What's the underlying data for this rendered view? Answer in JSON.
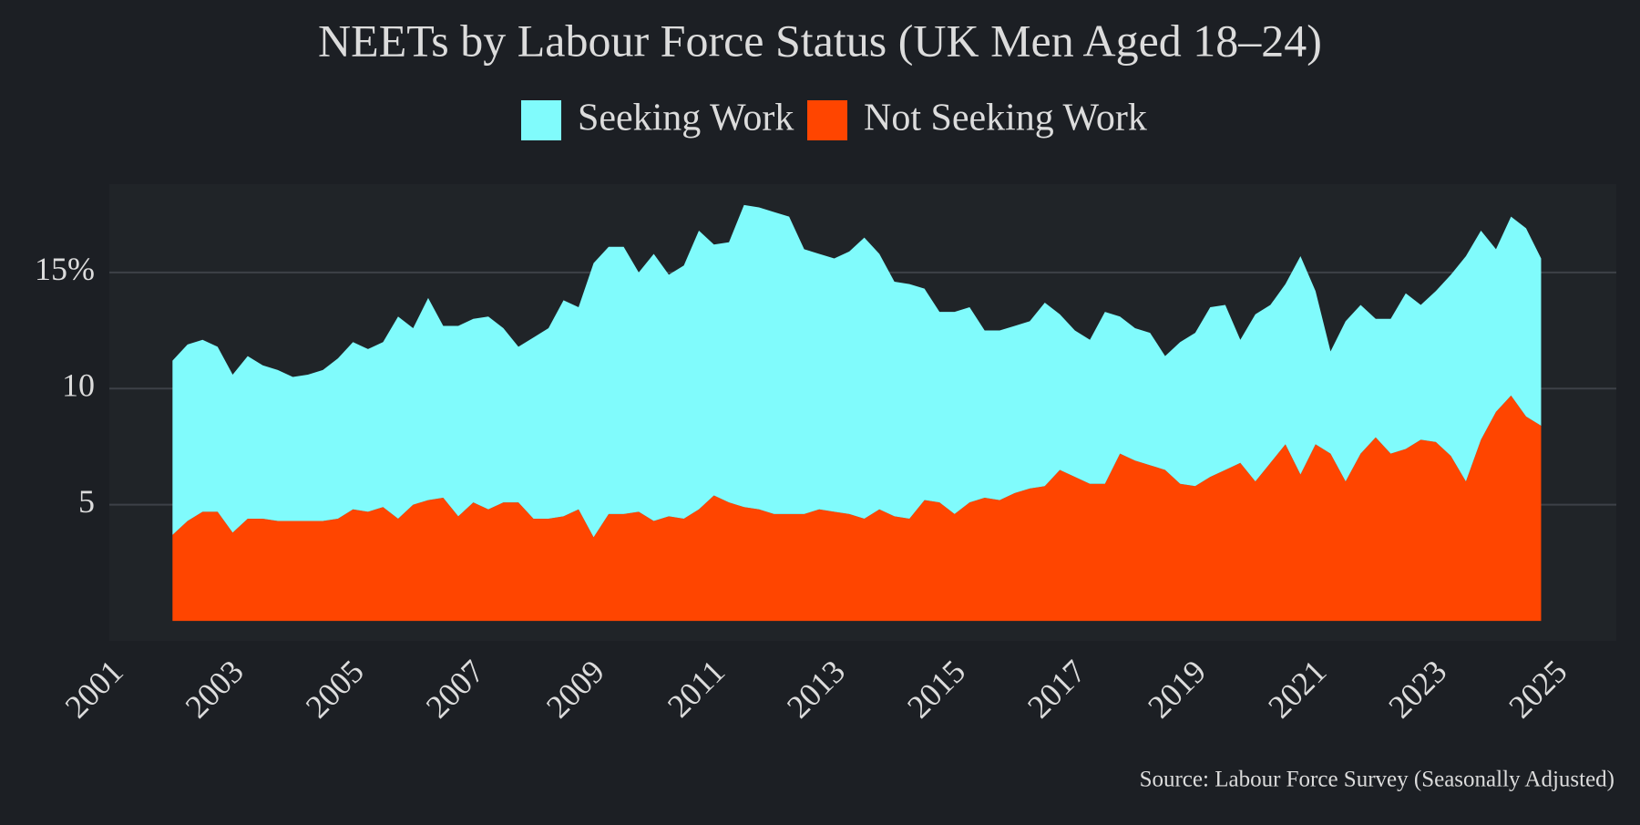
{
  "chart_data": {
    "type": "stacked-area",
    "title": "NEETs by Labour Force Status (UK Men Aged 18–24)",
    "source": "Source: Labour Force Survey (Seasonally Adjusted)",
    "x": [
      2002,
      2002.25,
      2002.5,
      2002.75,
      2003,
      2003.25,
      2003.5,
      2003.75,
      2004,
      2004.25,
      2004.5,
      2004.75,
      2005,
      2005.25,
      2005.5,
      2005.75,
      2006,
      2006.25,
      2006.5,
      2006.75,
      2007,
      2007.25,
      2007.5,
      2007.75,
      2008,
      2008.25,
      2008.5,
      2008.75,
      2009,
      2009.25,
      2009.5,
      2009.75,
      2010,
      2010.25,
      2010.5,
      2010.75,
      2011,
      2011.25,
      2011.5,
      2011.75,
      2012,
      2012.25,
      2012.5,
      2012.75,
      2013,
      2013.25,
      2013.5,
      2013.75,
      2014,
      2014.25,
      2014.5,
      2014.75,
      2015,
      2015.25,
      2015.5,
      2015.75,
      2016,
      2016.25,
      2016.5,
      2016.75,
      2017,
      2017.25,
      2017.5,
      2017.75,
      2018,
      2018.25,
      2018.5,
      2018.75,
      2019,
      2019.25,
      2019.5,
      2019.75,
      2020,
      2020.25,
      2020.5,
      2020.75,
      2021,
      2021.25,
      2021.5,
      2021.75,
      2022,
      2022.25,
      2022.5,
      2022.75,
      2023,
      2023.25,
      2023.5,
      2023.75,
      2024,
      2024.25,
      2024.5,
      2024.75
    ],
    "series": [
      {
        "name": "Seeking Work",
        "color": "#80fbfc",
        "values": [
          7.5,
          7.6,
          7.4,
          7.1,
          6.8,
          7.0,
          6.6,
          6.5,
          6.2,
          6.3,
          6.5,
          6.9,
          7.2,
          7.0,
          7.1,
          8.7,
          7.6,
          8.7,
          7.4,
          8.2,
          7.9,
          8.3,
          7.5,
          6.7,
          7.8,
          8.2,
          9.3,
          8.7,
          11.8,
          11.5,
          11.5,
          10.3,
          11.5,
          10.4,
          10.9,
          12.0,
          10.8,
          11.2,
          13.0,
          13.0,
          13.0,
          12.8,
          11.4,
          11.0,
          10.9,
          11.3,
          12.1,
          11.0,
          10.1,
          10.1,
          9.1,
          8.2,
          8.7,
          8.4,
          7.2,
          7.3,
          7.2,
          7.2,
          7.9,
          6.7,
          6.3,
          6.2,
          7.4,
          5.9,
          5.7,
          5.7,
          4.9,
          6.1,
          6.6,
          7.3,
          7.1,
          5.3,
          7.2,
          6.8,
          6.9,
          9.4,
          6.6,
          4.4,
          6.9,
          6.4,
          5.1,
          5.8,
          6.7,
          5.8,
          6.5,
          7.8,
          9.7,
          9.0,
          7.0,
          7.7,
          8.1,
          7.2
        ]
      },
      {
        "name": "Not Seeking Work",
        "color": "#ff4500",
        "values": [
          3.7,
          4.3,
          4.7,
          4.7,
          3.8,
          4.4,
          4.4,
          4.3,
          4.3,
          4.3,
          4.3,
          4.4,
          4.8,
          4.7,
          4.9,
          4.4,
          5.0,
          5.2,
          5.3,
          4.5,
          5.1,
          4.8,
          5.1,
          5.1,
          4.4,
          4.4,
          4.5,
          4.8,
          3.6,
          4.6,
          4.6,
          4.7,
          4.3,
          4.5,
          4.4,
          4.8,
          5.4,
          5.1,
          4.9,
          4.8,
          4.6,
          4.6,
          4.6,
          4.8,
          4.7,
          4.6,
          4.4,
          4.8,
          4.5,
          4.4,
          5.2,
          5.1,
          4.6,
          5.1,
          5.3,
          5.2,
          5.5,
          5.7,
          5.8,
          6.5,
          6.2,
          5.9,
          5.9,
          7.2,
          6.9,
          6.7,
          6.5,
          5.9,
          5.8,
          6.2,
          6.5,
          6.8,
          6.0,
          6.8,
          7.6,
          6.3,
          7.6,
          7.2,
          6.0,
          7.2,
          7.9,
          7.2,
          7.4,
          7.8,
          7.7,
          7.1,
          6.0,
          7.8,
          9.0,
          9.7,
          8.8,
          8.4
        ]
      }
    ],
    "xlim": [
      2000.95,
      2026
    ],
    "xticks": [
      2001,
      2003,
      2005,
      2007,
      2009,
      2011,
      2013,
      2015,
      2017,
      2019,
      2021,
      2023,
      2025
    ],
    "ylim": [
      -0.86,
      18.8
    ],
    "yticks": [
      5,
      10,
      {
        "value": 15,
        "label": "15%"
      }
    ],
    "grid": true,
    "legend": "top"
  }
}
